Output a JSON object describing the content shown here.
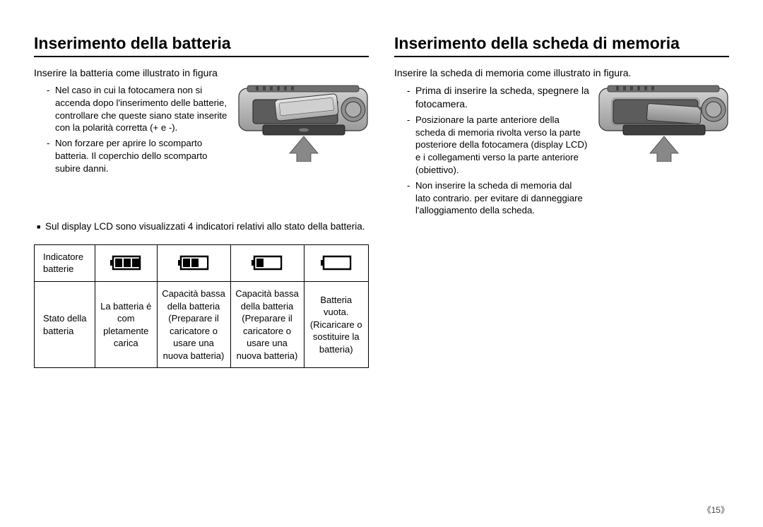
{
  "page_number": "15",
  "left": {
    "heading": "Inserimento della batteria",
    "intro": "Inserire la batteria come illustrato in figura",
    "bullets": [
      "Nel caso in cui la fotocamera non si accenda dopo l'inserimento delle batterie, controllare che queste siano state inserite con la polarità corretta (+ e -).",
      "Non forzare per aprire lo scomparto batteria. Il coperchio dello scomparto subire danni."
    ],
    "lcd_note": "Sul display LCD sono visualizzati 4 indicatori relativi allo stato della batteria.",
    "table": {
      "row1_label": "Indicatore batterie",
      "row2_label": "Stato della batteria",
      "status": [
        "La batteria é com pletamente carica",
        "Capacità bassa della batteria (Preparare il caricatore o usare una nuova batteria)",
        "Capacità bassa della batteria (Preparare il caricatore o usare una nuova batteria)",
        "Batteria vuota. (Ricaricare o sostituire la batteria)"
      ],
      "battery_levels": [
        3,
        2,
        1,
        0
      ]
    }
  },
  "right": {
    "heading": "Inserimento della scheda di memoria",
    "intro": "Inserire la scheda di memoria come illustrato in figura.",
    "bullets": [
      "Prima di inserire la scheda, spegnere la fotocamera.",
      "Posizionare la parte anteriore della scheda di memoria rivolta verso la parte posteriore della fotocamera (display LCD) e i collegamenti verso la parte anteriore (obiettivo).",
      "Non inserire la scheda di memoria dal lato contrario. per evitare di danneggiare l'alloggiamento della scheda."
    ]
  },
  "colors": {
    "camera_body": "#b9b9b9",
    "camera_dark": "#5a5a5a",
    "camera_stroke": "#333333",
    "arrow_fill": "#888888"
  }
}
